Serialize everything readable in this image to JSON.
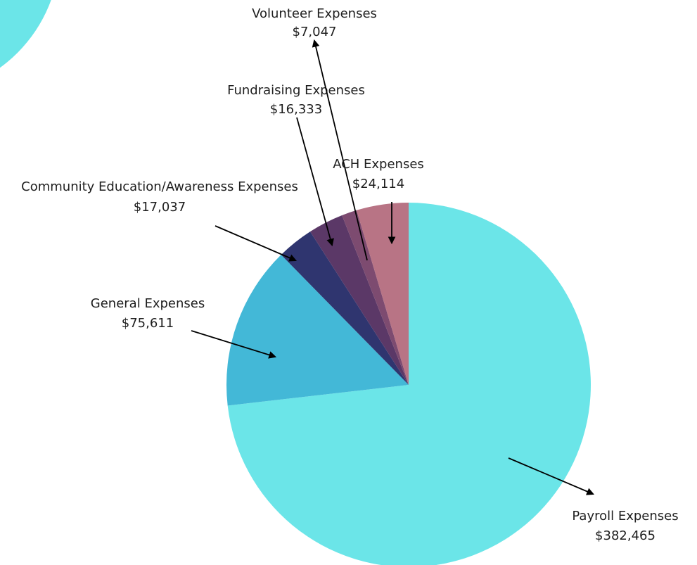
{
  "chart_data": {
    "type": "pie",
    "categories": [
      "Payroll Expenses",
      "General Expenses",
      "Community Education/Awareness Expenses",
      "Fundraising Expenses",
      "Volunteer Expenses",
      "ACH Expenses"
    ],
    "values": [
      382465,
      75611,
      17037,
      16333,
      7047,
      24114
    ],
    "value_labels": [
      "$382,465",
      "$75,611",
      "$17,037",
      "$16,333",
      "$7,047",
      "$24,114"
    ],
    "colors": [
      "#6be5e8",
      "#43b8d7",
      "#2f356f",
      "#5b3867",
      "#7d4b70",
      "#b87485"
    ]
  }
}
